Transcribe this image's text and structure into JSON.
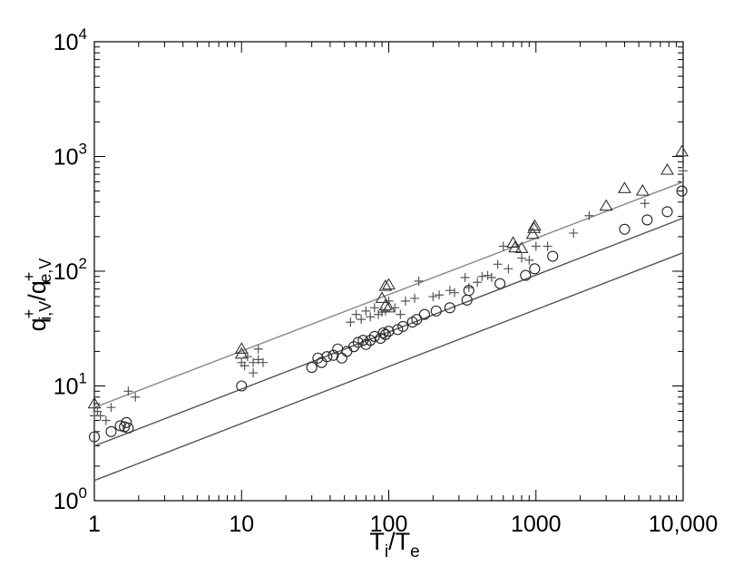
{
  "chart_data": {
    "type": "scatter",
    "xscale": "log",
    "yscale": "log",
    "xlim": [
      1,
      10000
    ],
    "ylim": [
      1,
      10000
    ],
    "grid": false,
    "xlabel": {
      "base": "T",
      "sub1": "i",
      "sep": "/T",
      "sub2": "e"
    },
    "ylabel": {
      "q": "q",
      "sup": "+",
      "sub_i": "i,V",
      "slash": "/",
      "sub_e": "e,V"
    },
    "x_ticks": [
      {
        "value": 1,
        "label": "1"
      },
      {
        "value": 10,
        "label": "10"
      },
      {
        "value": 100,
        "label": "100"
      },
      {
        "value": 1000,
        "label": "1000"
      },
      {
        "value": 10000,
        "label": "10,000"
      }
    ],
    "y_ticks": [
      {
        "value": 1,
        "base": "10",
        "exp": "0"
      },
      {
        "value": 10,
        "base": "10",
        "exp": "1"
      },
      {
        "value": 100,
        "base": "10",
        "exp": "2"
      },
      {
        "value": 1000,
        "base": "10",
        "exp": "3"
      },
      {
        "value": 10000,
        "base": "10",
        "exp": "4"
      }
    ],
    "lines": [
      {
        "x": [
          1,
          10000
        ],
        "y": [
          6.5,
          600
        ],
        "color": "#888888"
      },
      {
        "x": [
          1,
          10000
        ],
        "y": [
          3.0,
          290
        ],
        "color": "#555555"
      },
      {
        "x": [
          1,
          10000
        ],
        "y": [
          1.5,
          145
        ],
        "color": "#555555"
      }
    ],
    "series": [
      {
        "marker": "triangle",
        "color": "#333333",
        "x": [
          1,
          10,
          10,
          90,
          95,
          95,
          100,
          100,
          700,
          720,
          800,
          950,
          970,
          980,
          3000,
          4000,
          5300,
          7800,
          9800
        ],
        "y": [
          7,
          21,
          19,
          58,
          74,
          50,
          76,
          48,
          176,
          160,
          158,
          210,
          236,
          248,
          370,
          526,
          500,
          760,
          1100
        ]
      },
      {
        "marker": "plus",
        "color": "#555555",
        "x": [
          1,
          1.05,
          1.1,
          1.2,
          1.3,
          1.7,
          1.9,
          10,
          10.5,
          11,
          12,
          12,
          13,
          13,
          14,
          55,
          60,
          65,
          70,
          75,
          80,
          85,
          90,
          95,
          100,
          110,
          120,
          130,
          150,
          160,
          200,
          220,
          260,
          280,
          330,
          350,
          400,
          430,
          470,
          500,
          550,
          600,
          650,
          800,
          900,
          1000,
          1200,
          1800,
          2300,
          5500,
          10000
        ],
        "y": [
          5.5,
          6,
          5.5,
          5,
          6.5,
          9,
          8,
          16,
          15,
          18,
          16,
          13,
          17,
          21,
          16,
          36,
          42,
          38,
          45,
          40,
          48,
          42,
          44,
          45,
          55,
          48,
          42,
          55,
          58,
          82,
          60,
          62,
          68,
          65,
          88,
          72,
          80,
          90,
          92,
          88,
          115,
          165,
          105,
          130,
          125,
          165,
          165,
          215,
          305,
          390,
          750
        ]
      },
      {
        "marker": "circle",
        "color": "#222222",
        "x": [
          1,
          1.3,
          1.5,
          1.6,
          1.65,
          1.7,
          10,
          30,
          33,
          35,
          38,
          42,
          45,
          48,
          52,
          58,
          62,
          67,
          70,
          75,
          80,
          88,
          92,
          95,
          100,
          115,
          125,
          145,
          155,
          175,
          210,
          260,
          340,
          350,
          570,
          850,
          980,
          1300,
          4000,
          5700,
          7800,
          9800
        ],
        "y": [
          3.6,
          4,
          4.5,
          4.4,
          4.8,
          4.3,
          10,
          14.5,
          17.5,
          16,
          18,
          18.5,
          21,
          17.5,
          20,
          22,
          24,
          25,
          23,
          25,
          27,
          26,
          29,
          28,
          30,
          31,
          33,
          36,
          38,
          42,
          45,
          48,
          56,
          68,
          78,
          92,
          105,
          135,
          232,
          280,
          330,
          500
        ]
      }
    ]
  }
}
